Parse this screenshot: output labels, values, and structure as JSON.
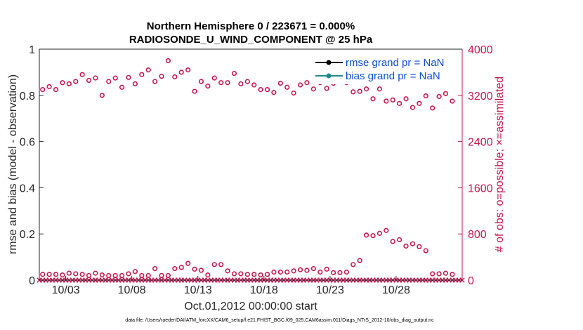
{
  "chart_data": {
    "type": "scatter",
    "title_line1": "Northern Hemisphere 0 / 223671 = 0.000%",
    "title_line2": "RADIOSONDE_U_WIND_COMPONENT @ 25 hPa",
    "xlabel": "Oct.01,2012 00:00:00 start",
    "ylabel_left": "rmse and bias (model - observation)",
    "ylabel_right": "# of obs: o=possible; ×=assimilated",
    "ylim_left": [
      0,
      1
    ],
    "ylim_right": [
      0,
      4000
    ],
    "yticks_left": [
      "0",
      "0.2",
      "0.4",
      "0.6",
      "0.8",
      "1"
    ],
    "yticks_right": [
      "0",
      "800",
      "1600",
      "2400",
      "3200",
      "4000"
    ],
    "xlim_days": [
      1,
      33
    ],
    "xtick_days": [
      3,
      8,
      13,
      18,
      23,
      28
    ],
    "xtick_labels": [
      "10/03",
      "10/08",
      "10/13",
      "10/18",
      "10/23",
      "10/28"
    ],
    "legend": [
      {
        "label": "rmse grand pr = NaN",
        "color": "#000000"
      },
      {
        "label": "bias grand pr = NaN",
        "color": "#1f8a8a"
      }
    ],
    "series": [
      {
        "name": "possible observations (upper)",
        "marker": "circle",
        "x": [
          1.25,
          1.75,
          2.25,
          2.75,
          3.25,
          3.75,
          4.25,
          4.75,
          5.25,
          5.75,
          6.25,
          6.75,
          7.25,
          7.75,
          8.25,
          8.75,
          9.25,
          9.75,
          10.25,
          10.75,
          11.25,
          11.75,
          12.25,
          12.75,
          13.25,
          13.75,
          14.25,
          14.75,
          15.25,
          15.75,
          16.25,
          16.75,
          17.25,
          17.75,
          18.25,
          18.75,
          19.25,
          19.75,
          20.25,
          20.75,
          21.25,
          21.75,
          22.25,
          22.75,
          23.25,
          23.75,
          24.25,
          24.75,
          25.25,
          25.75,
          26.25,
          26.75,
          27.25,
          27.75,
          28.25,
          28.75,
          29.25,
          29.75,
          30.25,
          30.75,
          31.25,
          31.75,
          32.25
        ],
        "values": [
          3300,
          3350,
          3300,
          3420,
          3400,
          3440,
          3560,
          3460,
          3500,
          3200,
          3440,
          3500,
          3340,
          3510,
          3400,
          3560,
          3640,
          3440,
          3530,
          3800,
          3520,
          3600,
          3640,
          3270,
          3440,
          3360,
          3500,
          3420,
          3420,
          3580,
          3400,
          3440,
          3380,
          3300,
          3300,
          3250,
          3410,
          3340,
          3240,
          3380,
          3420,
          3310,
          3420,
          3320,
          3410,
          3450,
          3420,
          3260,
          3270,
          3310,
          3140,
          3310,
          3100,
          3120,
          3060,
          3140,
          2990,
          3060,
          3190,
          2980,
          3180,
          3230,
          3100
        ]
      },
      {
        "name": "possible observations (lower)",
        "marker": "circle",
        "x": [
          1.25,
          1.75,
          2.25,
          2.75,
          3.25,
          3.75,
          4.25,
          4.75,
          5.25,
          5.75,
          6.25,
          6.75,
          7.25,
          7.75,
          8.25,
          8.75,
          9.25,
          9.75,
          10.25,
          10.75,
          11.25,
          11.75,
          12.25,
          12.75,
          13.25,
          13.75,
          14.25,
          14.75,
          15.25,
          15.75,
          16.25,
          16.75,
          17.25,
          17.75,
          18.25,
          18.75,
          19.25,
          19.75,
          20.25,
          20.75,
          21.25,
          21.75,
          22.25,
          22.75,
          23.25,
          23.75,
          24.25,
          24.75,
          25.25,
          25.75,
          26.25,
          26.75,
          27.25,
          27.75,
          28.25,
          28.75,
          29.25,
          29.75,
          30.25,
          30.75,
          31.25,
          31.75,
          32.25
        ],
        "values": [
          100,
          100,
          100,
          90,
          120,
          110,
          100,
          80,
          120,
          90,
          80,
          80,
          80,
          110,
          150,
          80,
          80,
          200,
          80,
          80,
          200,
          220,
          290,
          190,
          170,
          90,
          270,
          270,
          160,
          110,
          110,
          100,
          100,
          90,
          100,
          140,
          140,
          140,
          160,
          180,
          170,
          200,
          140,
          190,
          130,
          130,
          140,
          270,
          340,
          780,
          770,
          810,
          860,
          670,
          700,
          590,
          630,
          580,
          510,
          110,
          110,
          120,
          100
        ]
      },
      {
        "name": "assimilated observations",
        "marker": "x",
        "note": "constant zero for every 6-hourly analysis time",
        "value": 0
      }
    ]
  },
  "footnote": "data file: /Users/raeder/DAI/ATM_forcXX/CAM6_setup/f.e21.FHIST_BGC.f09_025.CAM6assim.011/Diags_NTrS_2012-10/obs_diag_output.nc"
}
